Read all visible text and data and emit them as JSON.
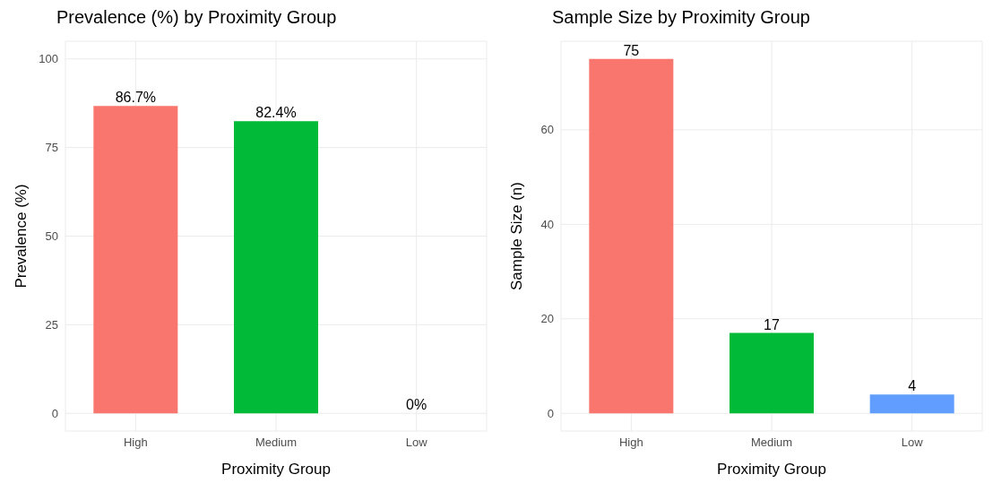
{
  "chart_data": [
    {
      "type": "bar",
      "title": "Prevalence (%) by Proximity Group",
      "xlabel": "Proximity Group",
      "ylabel": "Prevalence (%)",
      "categories": [
        "High",
        "Medium",
        "Low"
      ],
      "values": [
        86.7,
        82.4,
        0
      ],
      "colors": [
        "#f8766d",
        "#00ba38",
        "#619cff"
      ],
      "value_labels": [
        "86.7%",
        "82.4%",
        "0%"
      ],
      "ylim": [
        -5,
        105
      ],
      "yticks": [
        0,
        25,
        50,
        75,
        100
      ],
      "grid": true,
      "legend": false
    },
    {
      "type": "bar",
      "title": "Sample Size by Proximity Group",
      "xlabel": "Proximity Group",
      "ylabel": "Sample Size (n)",
      "categories": [
        "High",
        "Medium",
        "Low"
      ],
      "values": [
        75,
        17,
        4
      ],
      "colors": [
        "#f8766d",
        "#00ba38",
        "#619cff"
      ],
      "data_labels": true,
      "ylim": [
        -3.75,
        78.75
      ],
      "yticks": [
        0,
        20,
        40,
        60
      ],
      "grid": true,
      "legend": false
    }
  ]
}
